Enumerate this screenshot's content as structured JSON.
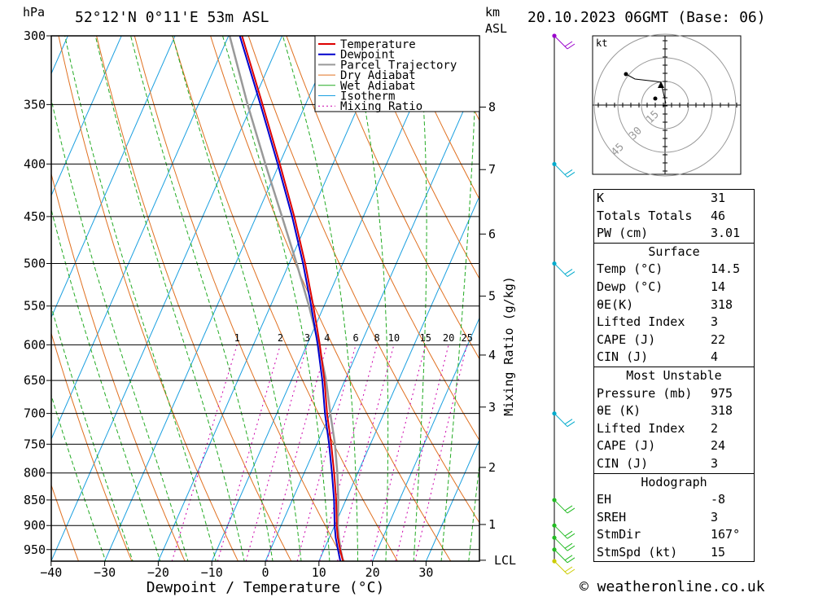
{
  "header": {
    "pressure_unit": "hPa",
    "location": "52°12'N  0°11'E  53m  ASL",
    "km_unit": "km",
    "asl_unit": "ASL",
    "datetime": "20.10.2023  06GMT  (Base: 06)"
  },
  "chart_data": {
    "type": "skewt",
    "title": "52°12'N  0°11'E  53m  ASL",
    "xlabel": "Dewpoint / Temperature (°C)",
    "ylabel": "hPa",
    "ylabel_right": "Mixing Ratio (g/kg)",
    "pressure_levels": [
      300,
      350,
      400,
      450,
      500,
      550,
      600,
      650,
      700,
      750,
      800,
      850,
      900,
      950
    ],
    "pressure_labels": [
      "300",
      "350",
      "400",
      "450",
      "500",
      "550",
      "600",
      "650",
      "700",
      "750",
      "800",
      "850",
      "900",
      "950"
    ],
    "x_ticks": [
      -40,
      -30,
      -20,
      -10,
      0,
      10,
      20,
      30
    ],
    "x_tick_labels": [
      "−40",
      "−30",
      "−20",
      "−10",
      "0",
      "10",
      "20",
      "30"
    ],
    "xlim": [
      -40,
      40
    ],
    "ylim": [
      300,
      975
    ],
    "km_levels": [
      {
        "label": "8",
        "p": 352
      },
      {
        "label": "7",
        "p": 405
      },
      {
        "label": "6",
        "p": 468
      },
      {
        "label": "5",
        "p": 538
      },
      {
        "label": "4",
        "p": 614
      },
      {
        "label": "3",
        "p": 690
      },
      {
        "label": "2",
        "p": 790
      },
      {
        "label": "1",
        "p": 898
      },
      {
        "label": "LCL",
        "p": 973
      }
    ],
    "mixing_ratio_labels": [
      "1",
      "2",
      "3",
      "4",
      "6",
      "8",
      "10",
      "15",
      "20",
      "25"
    ],
    "mixing_ratio_values": [
      1,
      2,
      3,
      4,
      6,
      8,
      10,
      15,
      20,
      25
    ],
    "legend": [
      "Temperature",
      "Dewpoint",
      "Parcel Trajectory",
      "Dry Adiabat",
      "Wet Adiabat",
      "Isotherm",
      "Mixing Ratio"
    ],
    "series": [
      {
        "name": "Temperature",
        "color": "#dd0000",
        "p": [
          975,
          950,
          925,
          900,
          850,
          800,
          750,
          700,
          650,
          600,
          550,
          500,
          450,
          400,
          350,
          300
        ],
        "t": [
          14.5,
          13.0,
          11.6,
          10.4,
          8.2,
          5.6,
          2.7,
          -0.6,
          -3.8,
          -7.6,
          -12.0,
          -17.0,
          -22.9,
          -29.9,
          -38.0,
          -47.5
        ]
      },
      {
        "name": "Dewpoint",
        "color": "#0000cc",
        "p": [
          975,
          950,
          925,
          900,
          850,
          800,
          750,
          700,
          650,
          600,
          550,
          500,
          450,
          400,
          350,
          300
        ],
        "t": [
          14.0,
          12.6,
          11.2,
          10.0,
          7.8,
          5.2,
          2.3,
          -1.0,
          -4.2,
          -8.0,
          -12.4,
          -17.4,
          -23.3,
          -30.3,
          -38.4,
          -47.9
        ]
      },
      {
        "name": "Parcel Trajectory",
        "color": "#999999",
        "p": [
          975,
          950,
          925,
          900,
          850,
          800,
          750,
          700,
          650,
          600,
          550,
          500,
          450,
          400,
          350,
          300
        ],
        "t": [
          14.5,
          13.1,
          11.8,
          10.6,
          8.6,
          6.2,
          3.4,
          0.0,
          -3.5,
          -7.8,
          -12.8,
          -18.6,
          -25.2,
          -32.6,
          -40.8,
          -49.8
        ]
      }
    ],
    "hodograph": {
      "unit": "kt",
      "rings": [
        15,
        30,
        45
      ],
      "ring_labels": [
        "15",
        "30",
        "45"
      ]
    },
    "wind_barbs": [
      {
        "p": 300,
        "color": "#9900cc"
      },
      {
        "p": 400,
        "color": "#00aacc"
      },
      {
        "p": 500,
        "color": "#00aacc"
      },
      {
        "p": 700,
        "color": "#00aacc"
      },
      {
        "p": 850,
        "color": "#22bb22"
      },
      {
        "p": 900,
        "color": "#22bb22"
      },
      {
        "p": 925,
        "color": "#22bb22"
      },
      {
        "p": 950,
        "color": "#22bb22"
      },
      {
        "p": 975,
        "color": "#cccc00"
      }
    ]
  },
  "indices": [
    {
      "label": "K",
      "value": "31"
    },
    {
      "label": "Totals Totals",
      "value": "46"
    },
    {
      "label": "PW (cm)",
      "value": "3.01"
    }
  ],
  "surface": {
    "title": "Surface",
    "rows": [
      {
        "label": "Temp (°C)",
        "value": "14.5"
      },
      {
        "label": "Dewp (°C)",
        "value": "14"
      },
      {
        "label": "θE(K)",
        "value": "318"
      },
      {
        "label": "Lifted Index",
        "value": "3"
      },
      {
        "label": "CAPE (J)",
        "value": "22"
      },
      {
        "label": "CIN (J)",
        "value": "4"
      }
    ]
  },
  "most_unstable": {
    "title": "Most Unstable",
    "rows": [
      {
        "label": "Pressure (mb)",
        "value": "975"
      },
      {
        "label": "θE (K)",
        "value": "318"
      },
      {
        "label": "Lifted Index",
        "value": "2"
      },
      {
        "label": "CAPE (J)",
        "value": "24"
      },
      {
        "label": "CIN (J)",
        "value": "3"
      }
    ]
  },
  "hodograph_table": {
    "title": "Hodograph",
    "rows": [
      {
        "label": "EH",
        "value": "-8"
      },
      {
        "label": "SREH",
        "value": "3"
      },
      {
        "label": "StmDir",
        "value": "167°"
      },
      {
        "label": "StmSpd (kt)",
        "value": "15"
      }
    ]
  },
  "footer": "© weatheronline.co.uk",
  "colors": {
    "temperature": "#dd0000",
    "dewpoint": "#0000cc",
    "parcel": "#999999",
    "dry_adiabat": "#e07020",
    "wet_adiabat": "#22aa22",
    "isotherm": "#1a9fe0",
    "mixing_ratio": "#cc00aa"
  }
}
